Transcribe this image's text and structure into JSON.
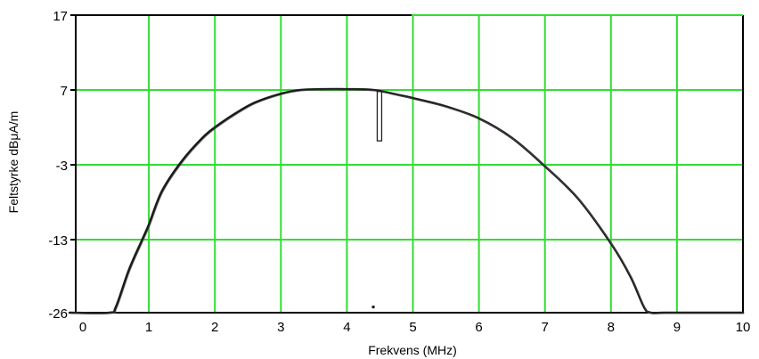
{
  "chart_data": {
    "type": "line",
    "title": "",
    "xlabel": "Frekvens (MHz)",
    "ylabel": "Feltstyrke dBμA/m",
    "xlim": [
      0,
      10
    ],
    "ylim": [
      -26,
      17
    ],
    "xticks": [
      "0",
      "1",
      "2",
      "3",
      "4",
      "5",
      "6",
      "7",
      "8",
      "9",
      "10"
    ],
    "yticks": [
      "17",
      "7",
      "-3",
      "-13",
      "-26"
    ],
    "grid": true,
    "colors": {
      "grid": "#33dd33",
      "curve": "#1a1a1a",
      "frame": "#000000"
    },
    "series": [
      {
        "x": [
          -0.2,
          0.4,
          0.5,
          0.7,
          0.9,
          1.0,
          1.2,
          1.5,
          1.8,
          2.0,
          2.3,
          2.6,
          3.0,
          3.3,
          3.6,
          4.0,
          4.4,
          4.8,
          5.0,
          5.5,
          6.0,
          6.5,
          7.0,
          7.5,
          8.0,
          8.3,
          8.5,
          8.6,
          8.8,
          9.5,
          10.0
        ],
        "y": [
          -26,
          -26,
          -22,
          -17,
          -13,
          -11,
          -6.5,
          -2.5,
          0.5,
          2.0,
          3.8,
          5.3,
          6.5,
          7.0,
          7.1,
          7.1,
          7.0,
          6.3,
          5.9,
          4.8,
          3.2,
          0.6,
          -3.2,
          -7.5,
          -13.5,
          -18,
          -22,
          -26,
          -26,
          -26,
          -26
        ]
      }
    ],
    "annotations": [
      {
        "type": "spike",
        "x": 4.5,
        "y_top": 6.8,
        "y_bottom": 0.2
      },
      {
        "type": "dot",
        "x": 4.4,
        "y": -22
      }
    ]
  }
}
